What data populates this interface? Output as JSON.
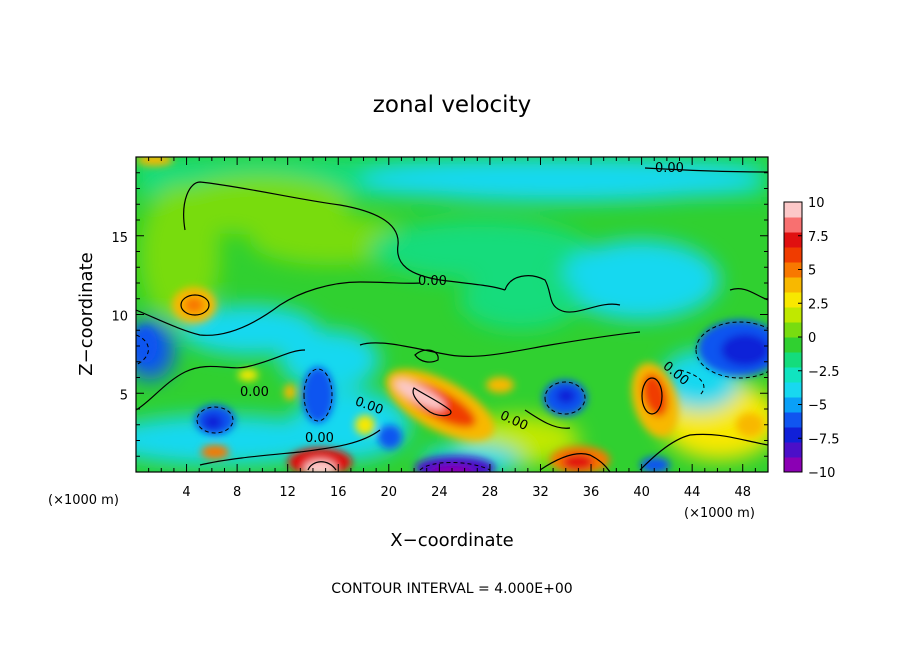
{
  "chart_data": {
    "type": "heatmap",
    "title": "zonal velocity",
    "xlabel": "X−coordinate",
    "ylabel": "Z−coordinate",
    "x_unit": "(×1000 m)",
    "xlim": [
      0,
      50
    ],
    "ylim": [
      0,
      20
    ],
    "x_ticks": [
      4,
      8,
      12,
      16,
      20,
      24,
      28,
      32,
      36,
      40,
      44,
      48
    ],
    "y_ticks": [
      5,
      10,
      15
    ],
    "colorbar": {
      "ticks": [
        "10",
        "7.5",
        "5",
        "2.5",
        "0",
        "−2.5",
        "−5",
        "−7.5",
        "−10"
      ],
      "range": [
        -10,
        10
      ],
      "colors": [
        "#8b00b4",
        "#4b0fc8",
        "#1020d8",
        "#1055f0",
        "#0aa0f8",
        "#18d8f0",
        "#10e4c0",
        "#14dc7c",
        "#30d030",
        "#78dc10",
        "#c0e800",
        "#f8e800",
        "#f8b800",
        "#f87800",
        "#f03c00",
        "#e01010",
        "#f87070",
        "#fcc8c8"
      ]
    },
    "contour_interval_text": "CONTOUR INTERVAL = 4.000E+00",
    "contour_label": "0.00",
    "grid": false,
    "features": [
      {
        "name": "positive-core",
        "x": 23,
        "z": 4.6,
        "value": 10
      },
      {
        "name": "positive-core",
        "x": 14.5,
        "z": 0.4,
        "value": 10
      },
      {
        "name": "positive",
        "x": 40.5,
        "z": 5,
        "value": 6
      },
      {
        "name": "positive",
        "x": 35,
        "z": 1,
        "value": 6
      },
      {
        "name": "positive",
        "x": 5,
        "z": 11,
        "value": 4
      },
      {
        "name": "negative",
        "x": 46.5,
        "z": 8,
        "value": -6
      },
      {
        "name": "negative",
        "x": 33.5,
        "z": 5,
        "value": -6
      },
      {
        "name": "negative",
        "x": 6.5,
        "z": 3.5,
        "value": -5
      },
      {
        "name": "negative-core",
        "x": 24,
        "z": 0.3,
        "value": -10
      },
      {
        "name": "negative",
        "x": 2,
        "z": 8,
        "value": -4
      },
      {
        "name": "negative",
        "x": 15,
        "z": 5,
        "value": -4
      }
    ]
  }
}
